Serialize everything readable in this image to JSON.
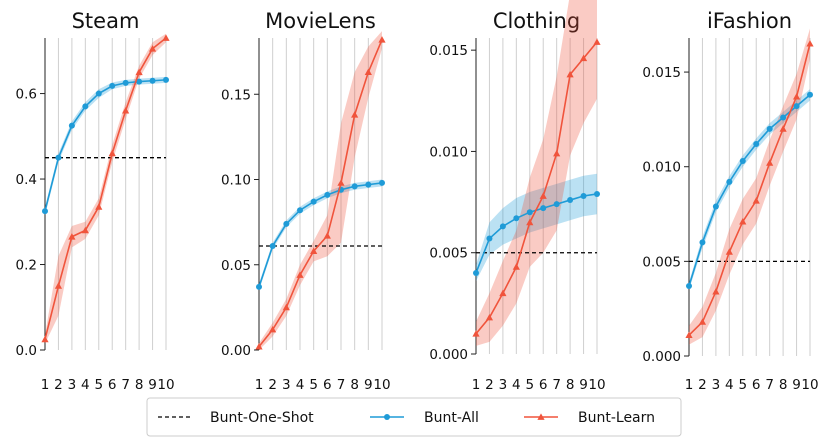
{
  "chart_data": {
    "type": "line",
    "x": [
      1,
      2,
      3,
      4,
      5,
      6,
      7,
      8,
      9,
      10
    ],
    "xtick_labels": [
      "1",
      "2",
      "3",
      "4",
      "5",
      "6",
      "7",
      "8",
      "9",
      "10"
    ],
    "grid": true,
    "legend": {
      "placement": "bottom",
      "entries": [
        "Bunt-One-Shot",
        "Bunt-All",
        "Bunt-Learn"
      ]
    },
    "colors": {
      "bunt_all": "#1f9bd7",
      "bunt_learn": "#f0543c",
      "one_shot": "#000000"
    },
    "panels": [
      {
        "title": "Steam",
        "ylim": [
          0,
          0.73
        ],
        "yticks": [
          0.0,
          0.2,
          0.4,
          0.6
        ],
        "ytick_labels": [
          "0.0",
          "0.2",
          "0.4",
          "0.6"
        ],
        "one_shot": 0.45,
        "series": [
          {
            "name": "Bunt-All",
            "values": [
              0.325,
              0.45,
              0.525,
              0.57,
              0.6,
              0.618,
              0.625,
              0.628,
              0.63,
              0.632
            ],
            "band": [
              0.01,
              0.01,
              0.01,
              0.01,
              0.01,
              0.008,
              0.007,
              0.007,
              0.007,
              0.007
            ]
          },
          {
            "name": "Bunt-Learn",
            "values": [
              0.025,
              0.15,
              0.265,
              0.28,
              0.335,
              0.46,
              0.56,
              0.65,
              0.705,
              0.73
            ],
            "band": [
              0.01,
              0.07,
              0.025,
              0.02,
              0.02,
              0.02,
              0.02,
              0.015,
              0.015,
              0.01
            ]
          }
        ]
      },
      {
        "title": "MovieLens",
        "ylim": [
          0,
          0.183
        ],
        "yticks": [
          0.0,
          0.05,
          0.1,
          0.15
        ],
        "ytick_labels": [
          "0.00",
          "0.05",
          "0.10",
          "0.15"
        ],
        "one_shot": 0.061,
        "series": [
          {
            "name": "Bunt-All",
            "values": [
              0.037,
              0.061,
              0.074,
              0.082,
              0.087,
              0.091,
              0.094,
              0.096,
              0.097,
              0.098
            ],
            "band": [
              0.002,
              0.002,
              0.002,
              0.002,
              0.002,
              0.002,
              0.002,
              0.002,
              0.002,
              0.002
            ]
          },
          {
            "name": "Bunt-Learn",
            "values": [
              0.002,
              0.012,
              0.025,
              0.044,
              0.058,
              0.067,
              0.098,
              0.138,
              0.163,
              0.182
            ],
            "band": [
              0.002,
              0.004,
              0.005,
              0.006,
              0.006,
              0.012,
              0.035,
              0.025,
              0.015,
              0.005
            ]
          }
        ]
      },
      {
        "title": "Clothing",
        "ylim": [
          0,
          0.0156
        ],
        "yticks": [
          0.0,
          0.005,
          0.01,
          0.015
        ],
        "ytick_labels": [
          "0.000",
          "0.005",
          "0.010",
          "0.015"
        ],
        "one_shot": 0.005,
        "series": [
          {
            "name": "Bunt-All",
            "values": [
              0.004,
              0.0057,
              0.0063,
              0.0067,
              0.007,
              0.0072,
              0.0074,
              0.0076,
              0.0078,
              0.0079
            ],
            "band": [
              0.0004,
              0.0008,
              0.0009,
              0.001,
              0.001,
              0.001,
              0.001,
              0.001,
              0.001,
              0.001
            ]
          },
          {
            "name": "Bunt-Learn",
            "values": [
              0.001,
              0.0018,
              0.003,
              0.0043,
              0.0065,
              0.0078,
              0.0099,
              0.0138,
              0.0146,
              0.0154
            ],
            "band": [
              0.0006,
              0.0012,
              0.0016,
              0.0018,
              0.0022,
              0.0028,
              0.0038,
              0.004,
              0.0032,
              0.0028
            ]
          }
        ]
      },
      {
        "title": "iFashion",
        "ylim": [
          0,
          0.0168
        ],
        "yticks": [
          0.0,
          0.005,
          0.01,
          0.015
        ],
        "ytick_labels": [
          "0.000",
          "0.005",
          "0.010",
          "0.015"
        ],
        "one_shot": 0.005,
        "series": [
          {
            "name": "Bunt-All",
            "values": [
              0.0037,
              0.006,
              0.0079,
              0.0092,
              0.0103,
              0.0112,
              0.012,
              0.0126,
              0.0132,
              0.0138
            ],
            "band": [
              0.0002,
              0.0003,
              0.0003,
              0.0003,
              0.0003,
              0.0003,
              0.0003,
              0.0003,
              0.0003,
              0.0003
            ]
          },
          {
            "name": "Bunt-Learn",
            "values": [
              0.0011,
              0.0018,
              0.0034,
              0.0055,
              0.0071,
              0.0082,
              0.0102,
              0.012,
              0.0137,
              0.0165
            ],
            "band": [
              0.0005,
              0.0008,
              0.001,
              0.0012,
              0.0012,
              0.0012,
              0.0012,
              0.0012,
              0.0012,
              0.0008
            ]
          }
        ]
      }
    ]
  }
}
